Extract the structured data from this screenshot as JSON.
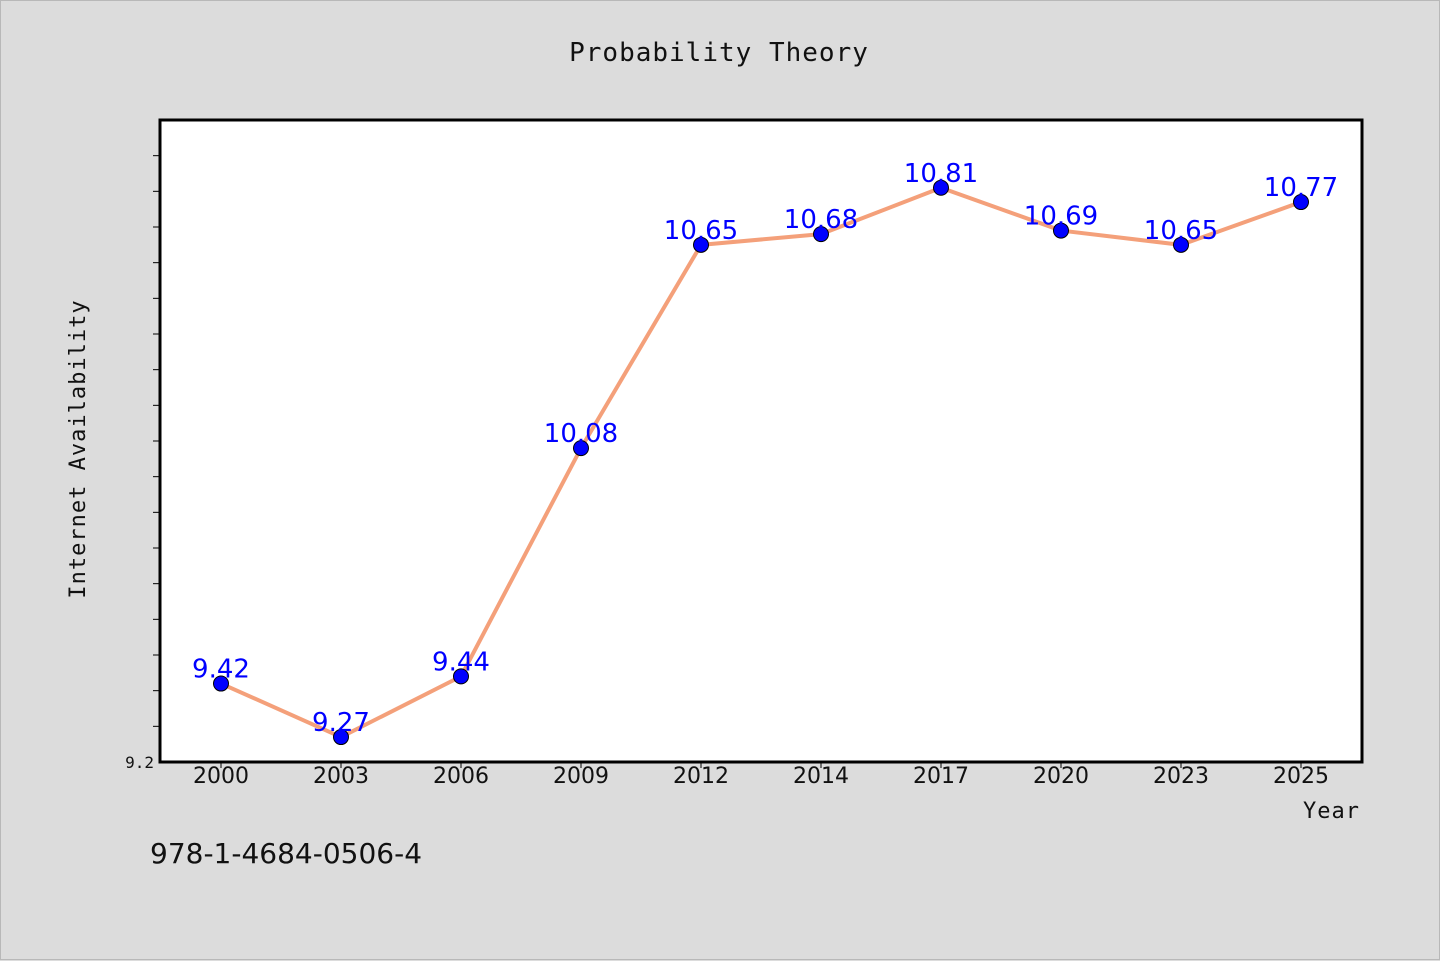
{
  "chart_data": {
    "type": "line",
    "title": "Probability Theory",
    "xlabel": "Year",
    "ylabel": "Internet Availability",
    "categories": [
      "2000",
      "2003",
      "2006",
      "2009",
      "2012",
      "2014",
      "2017",
      "2020",
      "2023",
      "2025"
    ],
    "series": [
      {
        "values": [
          9.42,
          9.27,
          9.44,
          10.08,
          10.65,
          10.68,
          10.81,
          10.69,
          10.65,
          10.77
        ],
        "labels": [
          "9.42",
          "9.27",
          "9.44",
          "10.08",
          "10.65",
          "10.68",
          "10.81",
          "10.69",
          "10.65",
          "10.77"
        ]
      }
    ],
    "ylim": [
      9.2,
      11.0
    ],
    "yticks": [
      "9.2"
    ],
    "y_minor_ticks": [
      9.3,
      9.4,
      9.5,
      9.6,
      9.7,
      9.8,
      9.9,
      10.0,
      10.1,
      10.2,
      10.3,
      10.4,
      10.5,
      10.6,
      10.7,
      10.8,
      10.9
    ],
    "grid": false,
    "line_color": "#f4a07a",
    "marker_color": "#0000ff",
    "label_color": "#0000ff",
    "plot_background": "#ffffff",
    "figure_background": "#dcdcdc",
    "annotation": "978-1-4684-0506-4"
  }
}
